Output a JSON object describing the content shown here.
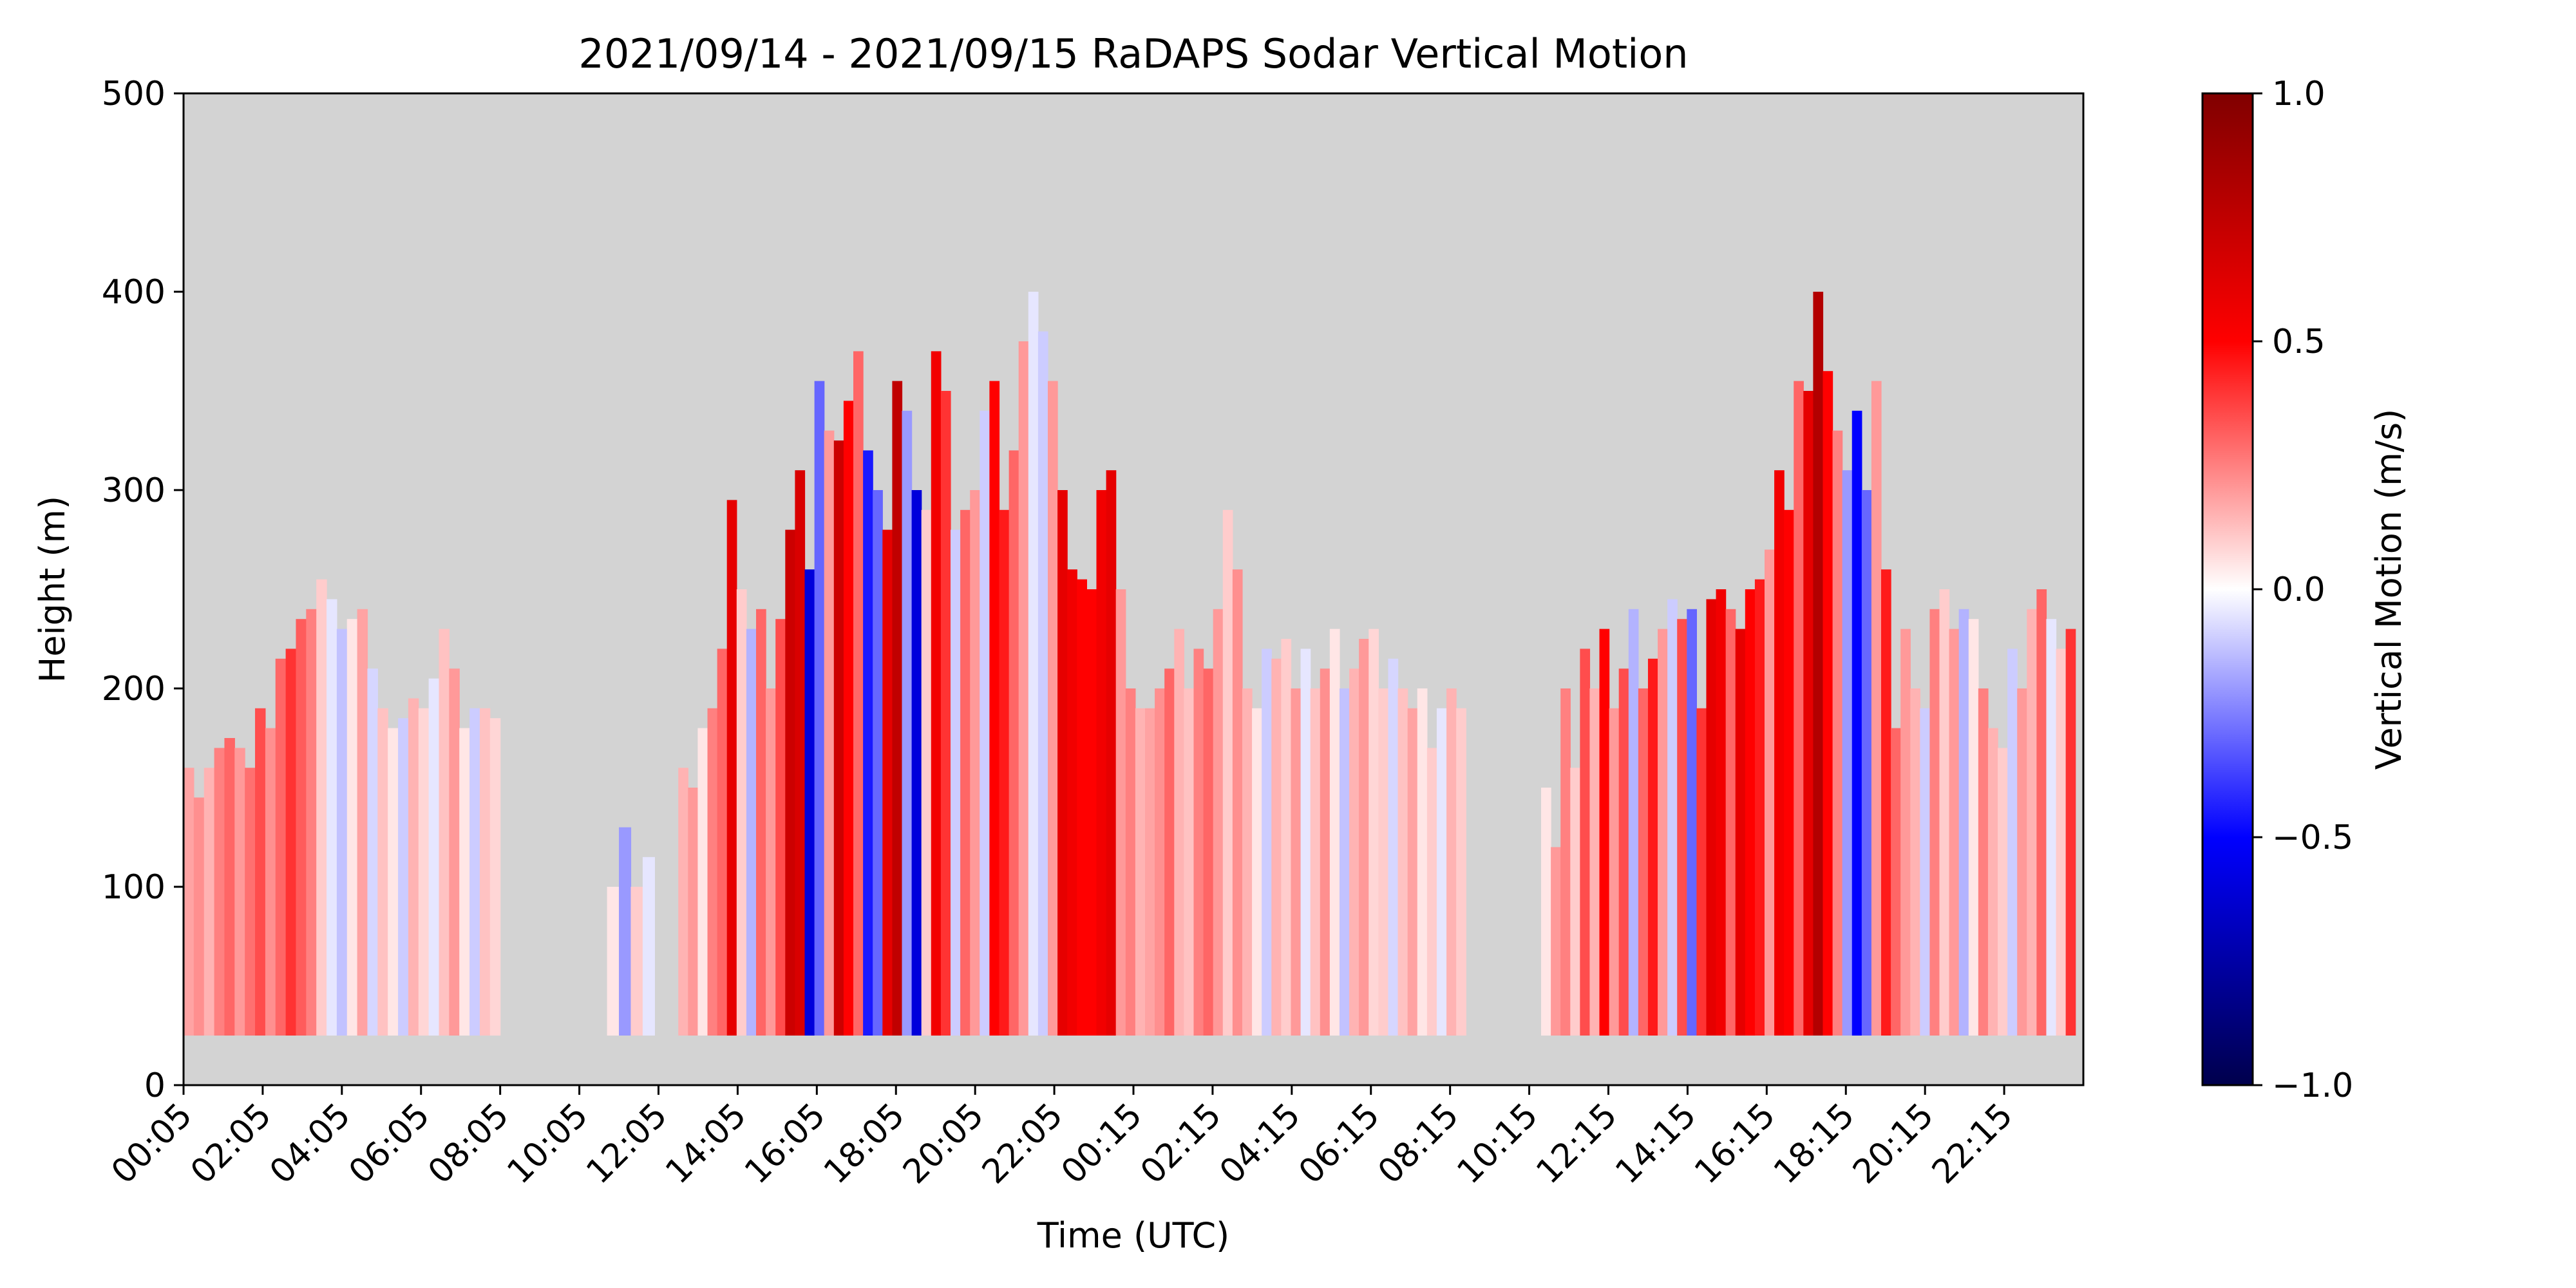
{
  "chart_data": {
    "type": "heatmap",
    "title": "2021/09/14 - 2021/09/15 RaDAPS Sodar Vertical Motion",
    "xlabel": "Time (UTC)",
    "ylabel": "Height (m)",
    "ylim": [
      0,
      500
    ],
    "y_ticks": [
      0,
      100,
      200,
      300,
      400,
      500
    ],
    "x_tick_labels": [
      "00:05",
      "02:05",
      "04:05",
      "06:05",
      "08:05",
      "10:05",
      "12:05",
      "14:05",
      "16:05",
      "18:05",
      "20:05",
      "22:05",
      "00:15",
      "02:15",
      "04:15",
      "06:15",
      "08:15",
      "10:15",
      "12:15",
      "14:15",
      "16:15",
      "18:15",
      "20:15",
      "22:15"
    ],
    "colorbar": {
      "label": "Vertical Motion (m/s)",
      "colormap": "seismic",
      "range": [
        -1.0,
        1.0
      ],
      "ticks": [
        1.0,
        0.5,
        0.0,
        -0.5,
        -1.0
      ],
      "tick_labels": [
        "1.0",
        "0.5",
        "0.0",
        "−0.5",
        "−1.0"
      ],
      "colors": {
        "min": "#00004c",
        "neg": "#0000ff",
        "zero": "#ffffff",
        "pos": "#ff0000",
        "max": "#800000"
      }
    },
    "no_data_color": "#d3d3d3",
    "min_height": 25,
    "time_step_hours": 0.5,
    "blocks": [
      {
        "start_hour": 0.0,
        "end_hour": 8.0,
        "tops": [
          160,
          145,
          160,
          170,
          175,
          170,
          160,
          190,
          180,
          215,
          220,
          235,
          240,
          255,
          245,
          230,
          235,
          240,
          210,
          190,
          180,
          185,
          195,
          190,
          205,
          230,
          210,
          180,
          190,
          190,
          185
        ],
        "values": [
          0.18,
          0.22,
          0.15,
          0.25,
          0.3,
          0.2,
          0.28,
          0.35,
          0.22,
          0.3,
          0.4,
          0.32,
          0.25,
          0.1,
          -0.05,
          -0.12,
          0.05,
          0.18,
          -0.08,
          0.12,
          0.05,
          -0.1,
          0.15,
          0.08,
          -0.05,
          0.12,
          0.2,
          0.05,
          -0.1,
          0.12,
          0.08
        ]
      },
      {
        "start_hour": 10.7,
        "end_hour": 11.9,
        "tops": [
          100,
          130,
          100,
          115
        ],
        "values": [
          0.05,
          -0.2,
          0.1,
          -0.05
        ]
      },
      {
        "start_hour": 12.5,
        "end_hour": 32.4,
        "tops": [
          160,
          150,
          180,
          190,
          220,
          295,
          250,
          230,
          240,
          200,
          235,
          280,
          310,
          260,
          355,
          330,
          325,
          345,
          370,
          320,
          300,
          280,
          355,
          340,
          300,
          290,
          370,
          350,
          280,
          290,
          300,
          340,
          355,
          290,
          320,
          375,
          400,
          380,
          355,
          300,
          260,
          255,
          250,
          300,
          310,
          250,
          200,
          190,
          190,
          200,
          210,
          230,
          200,
          220,
          210,
          240,
          290,
          260,
          200,
          190,
          220,
          215,
          225,
          200,
          220,
          200,
          210,
          230,
          200,
          210,
          225,
          230,
          200,
          215,
          200,
          190,
          200,
          170,
          190,
          200,
          190
        ],
        "values": [
          0.15,
          0.2,
          0.05,
          0.25,
          0.3,
          0.6,
          0.1,
          -0.15,
          0.3,
          0.2,
          0.35,
          0.7,
          0.65,
          -0.6,
          -0.3,
          0.2,
          0.7,
          0.5,
          0.3,
          -0.45,
          -0.3,
          0.6,
          0.75,
          -0.2,
          -0.6,
          0.1,
          0.55,
          0.4,
          -0.1,
          0.3,
          0.2,
          -0.1,
          0.5,
          0.45,
          0.3,
          0.2,
          -0.05,
          -0.1,
          0.2,
          0.6,
          0.55,
          0.5,
          0.5,
          0.55,
          0.6,
          0.2,
          0.25,
          0.15,
          0.18,
          0.22,
          0.3,
          0.15,
          0.12,
          0.25,
          0.3,
          0.2,
          0.1,
          0.22,
          0.15,
          0.05,
          -0.1,
          0.15,
          0.1,
          0.2,
          -0.05,
          0.12,
          0.22,
          0.05,
          -0.12,
          0.15,
          0.2,
          0.08,
          0.1,
          -0.08,
          0.12,
          0.18,
          0.05,
          0.1,
          -0.05,
          0.15,
          0.1
        ]
      },
      {
        "start_hour": 34.3,
        "end_hour": 47.8,
        "tops": [
          150,
          120,
          200,
          160,
          220,
          200,
          230,
          190,
          210,
          240,
          200,
          215,
          230,
          245,
          235,
          240,
          190,
          245,
          250,
          240,
          230,
          250,
          255,
          270,
          310,
          290,
          355,
          350,
          400,
          360,
          330,
          310,
          340,
          300,
          355,
          260,
          180,
          230,
          200,
          190,
          240,
          250,
          230,
          240,
          235,
          200,
          180,
          170,
          220,
          200,
          240,
          250,
          235,
          220,
          230
        ],
        "values": [
          0.05,
          0.2,
          0.25,
          0.1,
          0.35,
          0.15,
          0.5,
          0.2,
          0.35,
          -0.15,
          0.3,
          0.45,
          0.2,
          -0.1,
          0.35,
          -0.3,
          0.4,
          0.6,
          0.55,
          0.3,
          0.6,
          0.5,
          0.45,
          0.2,
          0.55,
          0.5,
          0.3,
          0.6,
          0.8,
          0.5,
          0.25,
          -0.2,
          -0.5,
          -0.3,
          0.2,
          0.45,
          0.3,
          0.2,
          0.15,
          -0.1,
          0.25,
          0.1,
          0.2,
          -0.15,
          0.05,
          0.25,
          0.15,
          0.1,
          -0.1,
          0.2,
          0.15,
          0.3,
          -0.05,
          0.1,
          0.4
        ]
      }
    ],
    "grid": false
  }
}
